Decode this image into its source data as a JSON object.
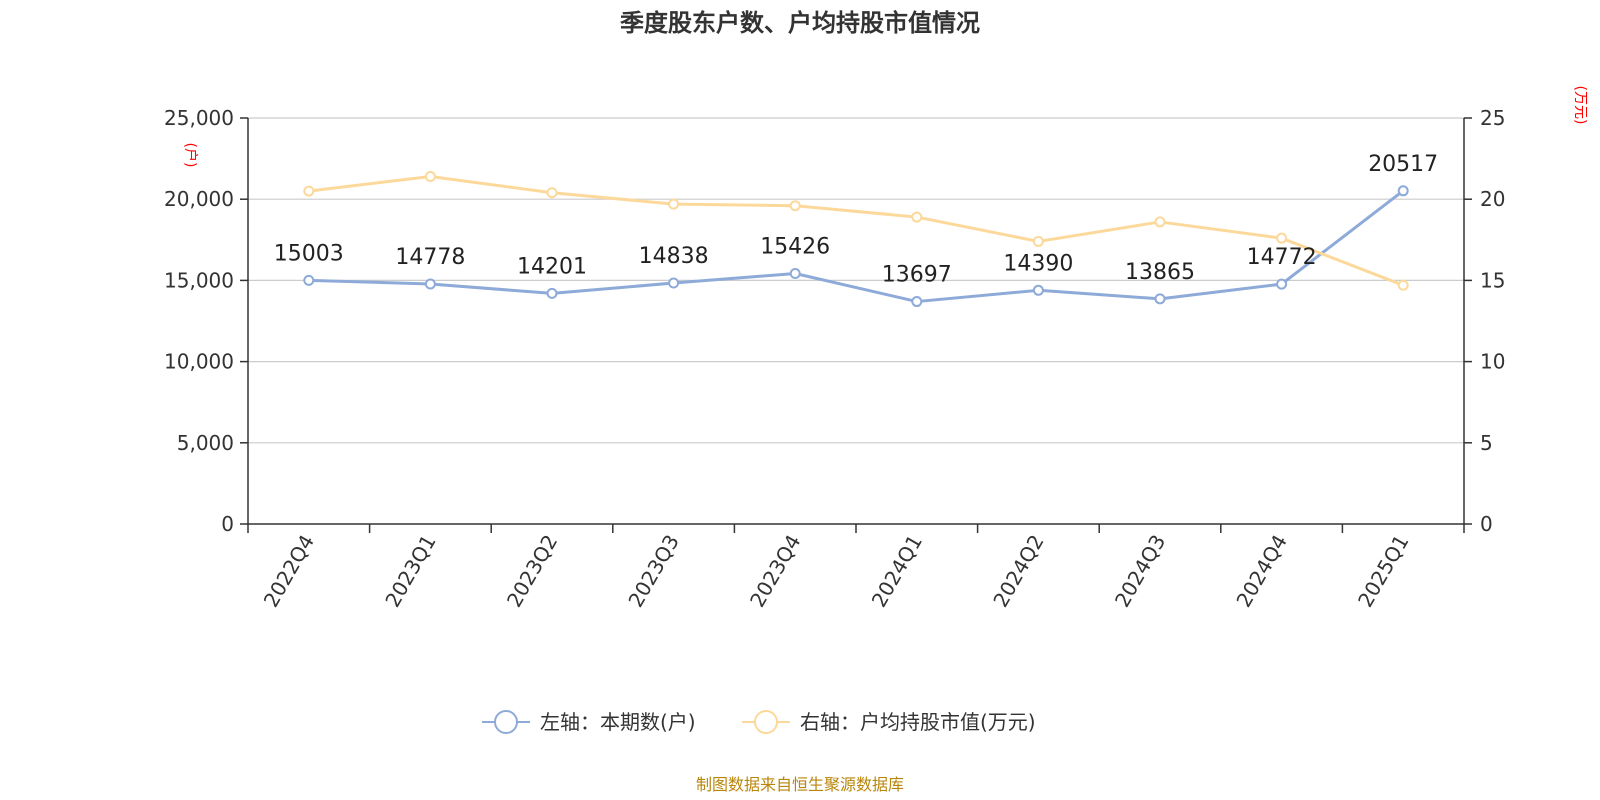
{
  "chart_data": {
    "type": "line",
    "title": "季度股东户数、户均持股市值情况",
    "categories": [
      "2022Q4",
      "2023Q1",
      "2023Q2",
      "2023Q3",
      "2023Q4",
      "2024Q1",
      "2024Q2",
      "2024Q3",
      "2024Q4",
      "2025Q1"
    ],
    "series": [
      {
        "name": "左轴：本期数(户)",
        "axis": "left",
        "color": "#8eaad8",
        "values": [
          15003,
          14778,
          14201,
          14838,
          15426,
          13697,
          14390,
          13865,
          14772,
          20517
        ],
        "show_labels": true
      },
      {
        "name": "右轴：户均持股市值(万元)",
        "axis": "right",
        "color": "#fcd99a",
        "values": [
          20.5,
          21.4,
          20.4,
          19.7,
          19.6,
          18.9,
          17.4,
          18.6,
          17.6,
          14.7
        ],
        "show_labels": false
      }
    ],
    "y_left": {
      "unit": "(户)",
      "lim": [
        0,
        25000
      ],
      "ticks": [
        0,
        5000,
        10000,
        15000,
        20000,
        25000
      ],
      "tick_labels": [
        "0",
        "5,000",
        "10,000",
        "15,000",
        "20,000",
        "25,000"
      ]
    },
    "y_right": {
      "unit": "(万元)",
      "lim": [
        0,
        25
      ],
      "ticks": [
        0,
        5,
        10,
        15,
        20,
        25
      ],
      "tick_labels": [
        "0",
        "5",
        "10",
        "15",
        "20",
        "25"
      ]
    },
    "grid": true,
    "legend": "bottom-center",
    "source": "制图数据来自恒生聚源数据库",
    "colors": {
      "grid": "#cccccc",
      "axis": "#333333",
      "unit": "#ff0000",
      "source": "#b8860b"
    }
  }
}
